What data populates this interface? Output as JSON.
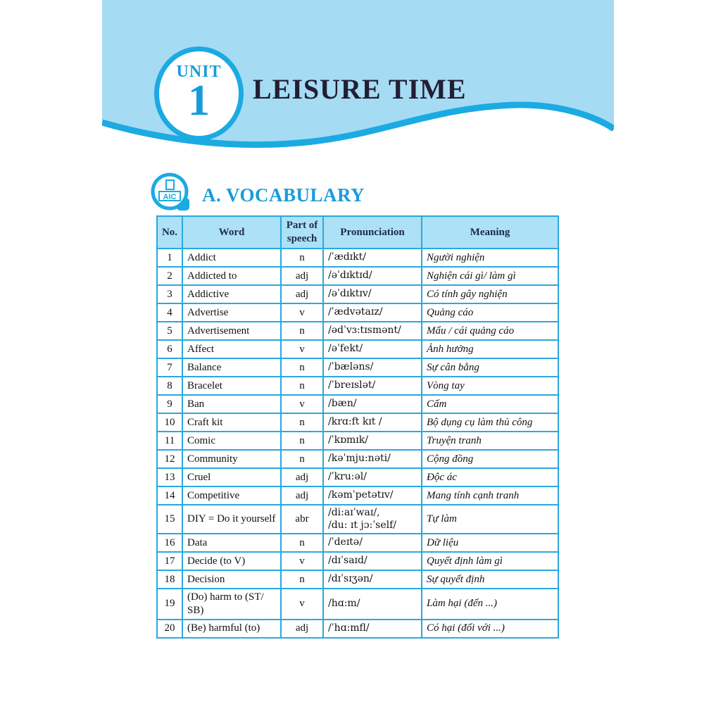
{
  "theme": {
    "band_fill": "#a6dbf4",
    "wave_stroke": "#1caae2",
    "accent_blue": "#189cd8",
    "table_border": "#2aa8df",
    "table_header_bg": "#ade1f6",
    "table_header_text": "#1c2b49",
    "title_color": "#221e33"
  },
  "header": {
    "unit_label": "UNIT",
    "unit_number": "1",
    "title": "LEISURE TIME"
  },
  "section": {
    "logo_text": "AIC",
    "heading": "A. VOCABULARY"
  },
  "table": {
    "columns": [
      "No.",
      "Word",
      "Part of speech",
      "Pronunciation",
      "Meaning"
    ],
    "rows": [
      {
        "no": "1",
        "word": "Addict",
        "pos": "n",
        "pron": "/ˈædɪkt/",
        "meaning": "Người nghiện"
      },
      {
        "no": "2",
        "word": "Addicted to",
        "pos": "adj",
        "pron": "/əˈdɪktɪd/",
        "meaning": "Nghiện cái gì/ làm gì"
      },
      {
        "no": "3",
        "word": "Addictive",
        "pos": "adj",
        "pron": "/əˈdɪktɪv/",
        "meaning": "Có tính gây nghiện"
      },
      {
        "no": "4",
        "word": "Advertise",
        "pos": "v",
        "pron": "/ˈædvətaɪz/",
        "meaning": "Quảng cáo"
      },
      {
        "no": "5",
        "word": "Advertisement",
        "pos": "n",
        "pron": "/ədˈvɜ:tɪsmənt/",
        "meaning": "Mẩu / cái quảng cáo"
      },
      {
        "no": "6",
        "word": "Affect",
        "pos": "v",
        "pron": "/əˈfekt/",
        "meaning": "Ảnh hưởng"
      },
      {
        "no": "7",
        "word": "Balance",
        "pos": "n",
        "pron": "/ˈbæləns/",
        "meaning": "Sự cân bằng"
      },
      {
        "no": "8",
        "word": "Bracelet",
        "pos": "n",
        "pron": "/ˈbreɪslət/",
        "meaning": "Vòng tay"
      },
      {
        "no": "9",
        "word": "Ban",
        "pos": "v",
        "pron": "/bæn/",
        "meaning": "Cấm"
      },
      {
        "no": "10",
        "word": "Craft kit",
        "pos": "n",
        "pron": "/krɑ:ft kɪt /",
        "meaning": "Bộ dụng cụ làm thủ công"
      },
      {
        "no": "11",
        "word": "Comic",
        "pos": "n",
        "pron": "/ˈkɒmɪk/",
        "meaning": "Truyện tranh"
      },
      {
        "no": "12",
        "word": "Community",
        "pos": "n",
        "pron": "/kəˈmju:nəti/",
        "meaning": "Cộng đồng"
      },
      {
        "no": "13",
        "word": "Cruel",
        "pos": "adj",
        "pron": "/ˈkru:əl/",
        "meaning": "Độc ác"
      },
      {
        "no": "14",
        "word": "Competitive",
        "pos": "adj",
        "pron": "/kəmˈpetətɪv/",
        "meaning": "Mang tính cạnh tranh"
      },
      {
        "no": "15",
        "word": "DIY = Do it yourself",
        "pos": "abr",
        "pron": "/di:aɪˈwaɪ/,\n/du: ɪt jɔ:ˈself/",
        "meaning": "Tự làm"
      },
      {
        "no": "16",
        "word": "Data",
        "pos": "n",
        "pron": "/ˈdeɪtə/",
        "meaning": "Dữ liệu"
      },
      {
        "no": "17",
        "word": "Decide (to V)",
        "pos": "v",
        "pron": "/dɪˈsaɪd/",
        "meaning": "Quyết định làm gì"
      },
      {
        "no": "18",
        "word": "Decision",
        "pos": "n",
        "pron": "/dɪˈsɪʒən/",
        "meaning": "Sự quyết định"
      },
      {
        "no": "19",
        "word": "(Do) harm to (ST/ SB)",
        "pos": "v",
        "pron": "/hɑ:m/",
        "meaning": "Làm hại (đến ...)"
      },
      {
        "no": "20",
        "word": "(Be) harmful (to)",
        "pos": "adj",
        "pron": "/ˈhɑ:mfl/",
        "meaning": "Có hại (đối với ...)"
      }
    ]
  }
}
